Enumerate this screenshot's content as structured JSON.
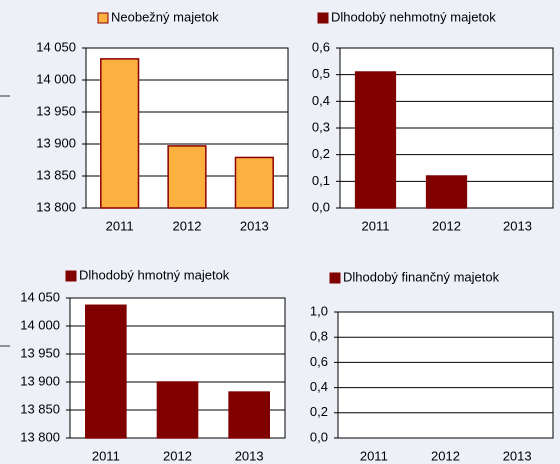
{
  "chart_data": [
    {
      "type": "bar",
      "categories": [
        "2011",
        "2012",
        "2013"
      ],
      "series": [
        {
          "name": "Neobežný majetok",
          "color": "#fbb040",
          "edgecolor": "#8b0000",
          "values": [
            14033,
            13897,
            13879
          ]
        }
      ],
      "ylim": [
        13800,
        14050
      ],
      "yticks": [
        {
          "value": 13800,
          "label": "13 800"
        },
        {
          "value": 13850,
          "label": "13 850"
        },
        {
          "value": 13900,
          "label": "13 900"
        },
        {
          "value": 13950,
          "label": "13 950"
        },
        {
          "value": 14000,
          "label": "14 000"
        },
        {
          "value": 14050,
          "label": "14 050"
        }
      ],
      "grid": true
    },
    {
      "type": "bar",
      "categories": [
        "2011",
        "2012",
        "2013"
      ],
      "series": [
        {
          "name": "Dlhodobý nehmotný majetok",
          "color": "#800000",
          "edgecolor": "#800000",
          "values": [
            0.51,
            0.12,
            0
          ]
        }
      ],
      "ylim": [
        0,
        0.6
      ],
      "yticks": [
        {
          "value": 0,
          "label": "0,0"
        },
        {
          "value": 0.1,
          "label": "0,1"
        },
        {
          "value": 0.2,
          "label": "0,2"
        },
        {
          "value": 0.3,
          "label": "0,3"
        },
        {
          "value": 0.4,
          "label": "0,4"
        },
        {
          "value": 0.5,
          "label": "0,5"
        },
        {
          "value": 0.6,
          "label": "0,6"
        }
      ],
      "grid": true
    },
    {
      "type": "bar",
      "categories": [
        "2011",
        "2012",
        "2013"
      ],
      "series": [
        {
          "name": "Dlhodobý hmotný majetok",
          "color": "#800000",
          "edgecolor": "#800000",
          "values": [
            14037,
            13900,
            13882
          ]
        }
      ],
      "ylim": [
        13800,
        14050
      ],
      "yticks": [
        {
          "value": 13800,
          "label": "13 800"
        },
        {
          "value": 13850,
          "label": "13 850"
        },
        {
          "value": 13900,
          "label": "13 900"
        },
        {
          "value": 13950,
          "label": "13 950"
        },
        {
          "value": 14000,
          "label": "14 000"
        },
        {
          "value": 14050,
          "label": "14 050"
        }
      ],
      "grid": true
    },
    {
      "type": "bar",
      "categories": [
        "2011",
        "2012",
        "2013"
      ],
      "series": [
        {
          "name": "Dlhodobý finančný majetok",
          "color": "#800000",
          "edgecolor": "#800000",
          "values": [
            0,
            0,
            0
          ]
        }
      ],
      "ylim": [
        0,
        1
      ],
      "yticks": [
        {
          "value": 0,
          "label": "0,0"
        },
        {
          "value": 0.2,
          "label": "0,2"
        },
        {
          "value": 0.4,
          "label": "0,4"
        },
        {
          "value": 0.6,
          "label": "0,6"
        },
        {
          "value": 0.8,
          "label": "0,8"
        },
        {
          "value": 1,
          "label": "1,0"
        }
      ],
      "grid": true
    }
  ]
}
